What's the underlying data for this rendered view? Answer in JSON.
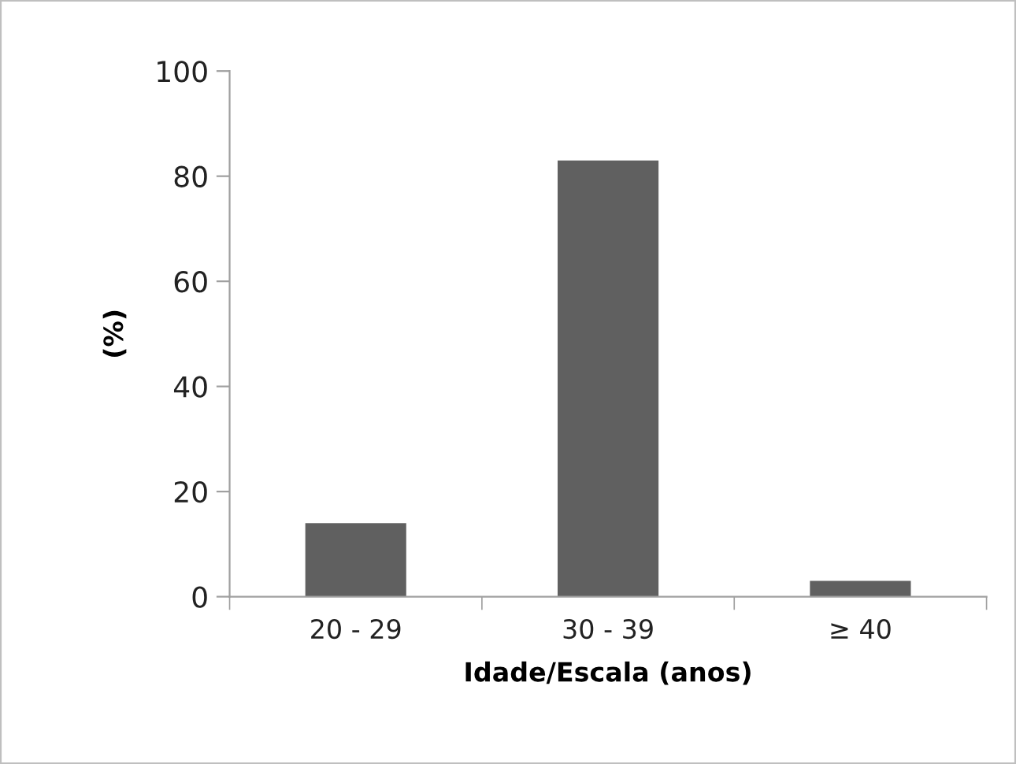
{
  "chart_data": {
    "type": "bar",
    "xlabel": "Idade/Escala (anos)",
    "ylabel": "(%)",
    "categories": [
      "20 - 29",
      "30 - 39",
      "≥ 40"
    ],
    "values": [
      14,
      83,
      3
    ],
    "color": "#606060",
    "ylim": [
      0,
      100
    ],
    "yticks": [
      0,
      20,
      40,
      60,
      80,
      100
    ],
    "grid": false
  }
}
